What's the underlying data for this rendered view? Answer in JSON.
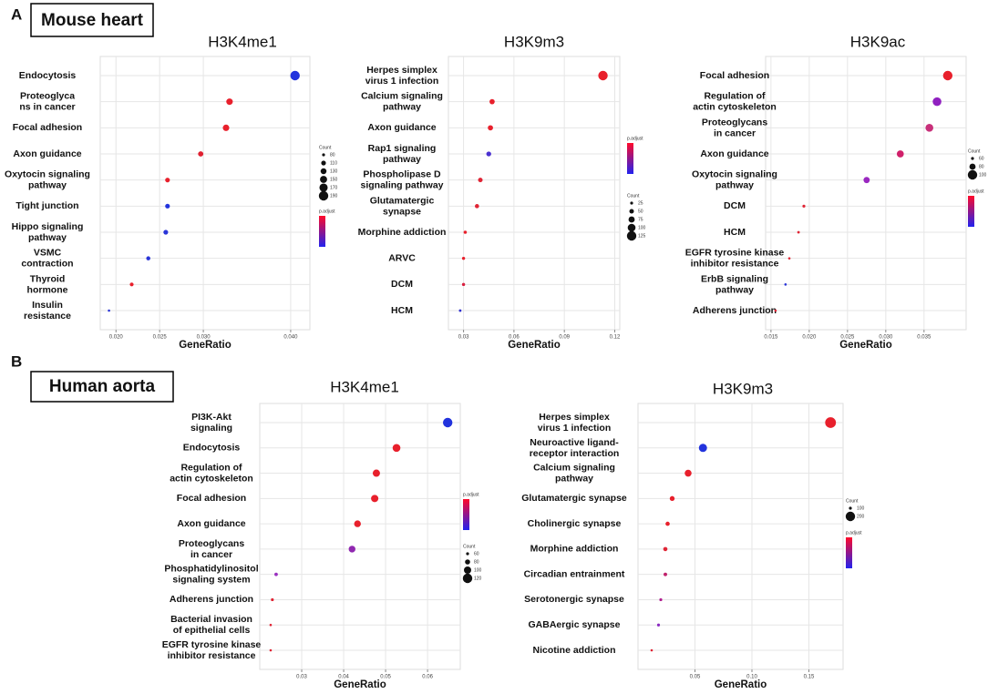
{
  "panels": [
    {
      "letter": "A",
      "name": "Mouse heart"
    },
    {
      "letter": "B",
      "name": "Human aorta"
    }
  ],
  "chart_data": [
    {
      "type": "dot",
      "title": "H3K4me1",
      "xlabel": "GeneRatio",
      "grid": true,
      "categories": [
        "Endocytosis",
        "Proteoglyca\nns in cancer",
        "Focal adhesion",
        "Axon guidance",
        "Oxytocin signaling\npathway",
        "Tight junction",
        "Hippo signaling\npathway",
        "VSMC\ncontraction",
        "Thyroid\nhormone",
        "Insulin\nresistance"
      ],
      "values": [
        0.0405,
        0.033,
        0.0326,
        0.0297,
        0.0259,
        0.0259,
        0.0257,
        0.0237,
        0.0218,
        0.0192
      ],
      "sizes": [
        190,
        140,
        140,
        120,
        110,
        110,
        110,
        100,
        95,
        60
      ],
      "colors": [
        "#2233dd",
        "#e8202c",
        "#e8202c",
        "#e02030",
        "#e8202c",
        "#2233dd",
        "#2a35d8",
        "#2a35d8",
        "#e8202c",
        "#2a35d8"
      ],
      "xlim": [
        0.0182,
        0.0422
      ],
      "xticks": [
        {
          "value": 0.02,
          "label": "0.020"
        },
        {
          "value": 0.025,
          "label": "0.025"
        },
        {
          "value": 0.03,
          "label": "0.030"
        },
        {
          "value": 0.04,
          "label": "0.040"
        }
      ],
      "size_legend": {
        "title": "Count",
        "values": [
          80,
          110,
          130,
          150,
          170,
          190
        ]
      },
      "color_legend": {
        "title": "p.adjust",
        "colors": [
          "#ff0a2a",
          "#2222ee"
        ]
      }
    },
    {
      "type": "dot",
      "title": "H3K9m3",
      "xlabel": "GeneRatio",
      "grid": true,
      "categories": [
        "Herpes simplex\nvirus 1 infection",
        "Calcium signaling\npathway",
        "Axon guidance",
        "Rap1 signaling\npathway",
        "Phospholipase D\nsignaling pathway",
        "Glutamatergic\nsynapse",
        "Morphine addiction",
        "ARVC",
        "DCM",
        "HCM"
      ],
      "values": [
        0.113,
        0.047,
        0.046,
        0.045,
        0.04,
        0.038,
        0.031,
        0.03,
        0.03,
        0.028
      ],
      "sizes": [
        125,
        60,
        60,
        55,
        50,
        45,
        30,
        28,
        28,
        20
      ],
      "colors": [
        "#e8202c",
        "#e8202c",
        "#e8202c",
        "#4a30d0",
        "#e02535",
        "#e02535",
        "#e8202c",
        "#e8202c",
        "#d82040",
        "#3030d0"
      ],
      "xlim": [
        0.021,
        0.123
      ],
      "xticks": [
        0.03,
        0.06,
        0.09,
        0.12
      ],
      "size_legend": {
        "title": "Count",
        "values": [
          25,
          50,
          75,
          100,
          125
        ]
      },
      "color_legend": {
        "title": "p.adjust",
        "colors": [
          "#ff0a2a",
          "#2222ee"
        ]
      }
    },
    {
      "type": "dot",
      "title": "H3K9ac",
      "xlabel": "GeneRatio",
      "grid": true,
      "categories": [
        "Focal adhesion",
        "Regulation of\nactin cytoskeleton",
        "Proteoglycans\nin cancer",
        "Axon guidance",
        "Oxytocin signaling\npathway",
        "DCM",
        "HCM",
        "EGFR tyrosine kinase\ninhibitor resistance",
        "ErbB signaling\npathway",
        "Adherens junction"
      ],
      "values": [
        0.0381,
        0.0367,
        0.0357,
        0.0319,
        0.0275,
        0.0193,
        0.0186,
        0.0174,
        0.0169,
        0.0156
      ],
      "sizes": [
        100,
        95,
        90,
        85,
        80,
        60,
        58,
        55,
        55,
        45
      ],
      "colors": [
        "#e8202c",
        "#9020c0",
        "#c8307a",
        "#d0206a",
        "#9a28c0",
        "#e02535",
        "#e02535",
        "#e02535",
        "#2a35d8",
        "#e02535"
      ],
      "xlim": [
        0.0143,
        0.0405
      ],
      "xticks": [
        {
          "value": 0.015,
          "label": "0.015"
        },
        {
          "value": 0.02,
          "label": "0.020"
        },
        {
          "value": 0.025,
          "label": "0.025"
        },
        {
          "value": 0.03,
          "label": "0.030"
        },
        {
          "value": 0.035,
          "label": "0.035"
        }
      ],
      "size_legend": {
        "title": "Count",
        "values": [
          60,
          80,
          100
        ]
      },
      "color_legend": {
        "title": "p.adjust",
        "colors": [
          "#ff0a2a",
          "#2222ee"
        ]
      }
    },
    {
      "type": "dot",
      "title": "H3K4me1",
      "xlabel": "GeneRatio",
      "grid": true,
      "categories": [
        "PI3K-Akt\nsignaling",
        "Endocytosis",
        "Regulation of\nactin cytoskeleton",
        "Focal adhesion",
        "Axon guidance",
        "Proteoglycans\nin cancer",
        "Phosphatidylinositol\nsignaling system",
        "Adherens junction",
        "Bacterial invasion\nof epithelial cells",
        "EGFR tyrosine kinase\ninhibitor resistance"
      ],
      "values": [
        0.0648,
        0.0526,
        0.0478,
        0.0474,
        0.0433,
        0.042,
        0.0239,
        0.023,
        0.0226,
        0.0226
      ],
      "sizes": [
        120,
        105,
        100,
        100,
        95,
        95,
        65,
        60,
        55,
        55
      ],
      "colors": [
        "#2233dd",
        "#e8202c",
        "#e8202c",
        "#e8202c",
        "#e8202c",
        "#9028b0",
        "#9a30c0",
        "#e02535",
        "#e02535",
        "#e02535"
      ],
      "xlim": [
        0.02,
        0.0678
      ],
      "xticks": [
        0.03,
        0.04,
        0.05,
        0.06
      ],
      "size_legend": {
        "title": "Count",
        "values": [
          60,
          80,
          100,
          120
        ]
      },
      "color_legend": {
        "title": "p.adjust",
        "colors": [
          "#ff0a2a",
          "#2222ee"
        ]
      }
    },
    {
      "type": "dot",
      "title": "H3K9m3",
      "xlabel": "GeneRatio",
      "grid": true,
      "categories": [
        "Herpes simplex\nvirus 1 infection",
        "Neuroactive ligand-\nreceptor interaction",
        "Calcium signaling\npathway",
        "Glutamatergic synapse",
        "Cholinergic synapse",
        "Morphine addiction",
        "Circadian entrainment",
        "Serotonergic synapse",
        "GABAergic  synapse",
        "Nicotine addiction"
      ],
      "values": [
        0.169,
        0.057,
        0.044,
        0.03,
        0.026,
        0.024,
        0.024,
        0.02,
        0.018,
        0.012
      ],
      "sizes": [
        220,
        180,
        160,
        130,
        120,
        120,
        110,
        100,
        100,
        80
      ],
      "colors": [
        "#e8202c",
        "#2233dd",
        "#e8202c",
        "#e8202c",
        "#e8202c",
        "#e02535",
        "#c0206a",
        "#b02090",
        "#8a28c0",
        "#e02535"
      ],
      "xlim": [
        0.0,
        0.18
      ],
      "xticks": [
        0.05,
        {
          "value": 0.1,
          "label": "0.10"
        },
        0.15
      ],
      "size_legend": {
        "title": "Count",
        "values": [
          100,
          200
        ]
      },
      "color_legend": {
        "title": "p.adjust",
        "colors": [
          "#ff0a2a",
          "#2222ee"
        ]
      }
    }
  ]
}
